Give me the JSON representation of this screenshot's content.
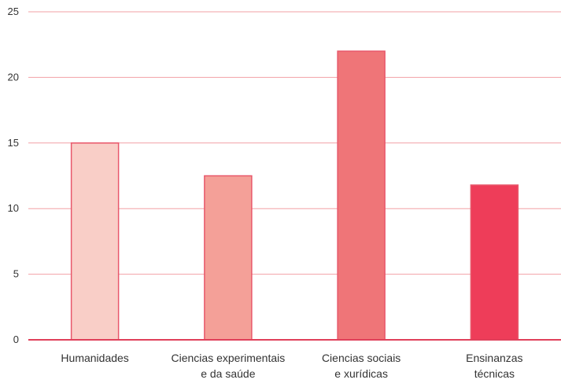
{
  "chart_data": {
    "type": "bar",
    "categories": [
      [
        "Humanidades"
      ],
      [
        "Ciencias experimentais",
        "e da saúde"
      ],
      [
        "Ciencias sociais",
        "e xurídicas"
      ],
      [
        "Ensinanzas",
        "técnicas"
      ]
    ],
    "values": [
      15.0,
      12.5,
      22.0,
      11.8
    ],
    "bar_colors": [
      "#F9CEC7",
      "#F4A098",
      "#EF7578",
      "#EE3D59"
    ],
    "bar_edge_color": "#E8586B",
    "grid_color": "#F2A0A6",
    "axis_color": "#E0405A",
    "ylim": [
      0,
      25
    ],
    "yticks": [
      0,
      5,
      10,
      15,
      20,
      25
    ],
    "grid": true,
    "title": "",
    "xlabel": "",
    "ylabel": ""
  }
}
